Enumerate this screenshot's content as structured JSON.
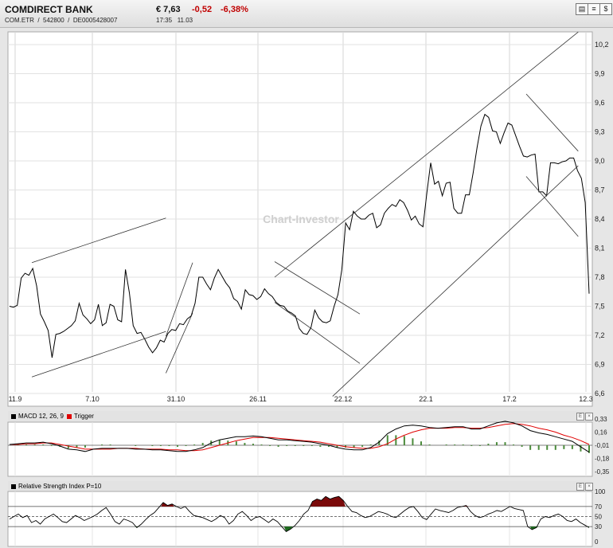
{
  "header": {
    "name": "COMDIRECT BANK",
    "exchange": "COM.ETR",
    "wkn": "542800",
    "isin": "DE0005428007",
    "price": "€ 7,63",
    "change": "-0,52",
    "change_pct": "-6,38%",
    "time": "17:35",
    "date": "11.03",
    "tool_buttons": [
      "chart-icon",
      "bars-icon",
      "dollar-icon"
    ]
  },
  "watermark": "Chart-Investor",
  "colors": {
    "price_line": "#000000",
    "trigger": "#e00000",
    "hist": "#4a8a3a",
    "rsi_over": "#7a0a0a",
    "rsi_under": "#1e6a1e",
    "negative": "#c00000"
  },
  "chart_data": [
    {
      "type": "line",
      "title": "",
      "xlabel": "",
      "ylabel": "",
      "x_ticks": [
        "11.9",
        "7.10",
        "31.10",
        "26.11",
        "22.12",
        "22.1",
        "17.2",
        "12.3"
      ],
      "y_ticks": [
        "10,2",
        "9,9",
        "9,6",
        "9,3",
        "9,0",
        "8,7",
        "8,4",
        "8,1",
        "7,8",
        "7,5",
        "7,2",
        "6,9",
        "6,6"
      ],
      "ylim": [
        6.6,
        10.2
      ],
      "axis_position": "right",
      "grid": true,
      "series": [
        {
          "values": [
            7.5,
            7.49,
            7.51,
            7.79,
            7.84,
            7.82,
            7.89,
            7.71,
            7.42,
            7.34,
            7.25,
            6.97,
            7.21,
            7.22,
            7.24,
            7.27,
            7.3,
            7.35,
            7.53,
            7.41,
            7.37,
            7.32,
            7.36,
            7.52,
            7.3,
            7.33,
            7.52,
            7.5,
            7.36,
            7.34,
            7.88,
            7.64,
            7.3,
            7.22,
            7.23,
            7.16,
            7.08,
            7.02,
            7.07,
            7.15,
            7.13,
            7.22,
            7.26,
            7.25,
            7.32,
            7.31,
            7.37,
            7.4,
            7.53,
            7.8,
            7.8,
            7.73,
            7.67,
            7.79,
            7.88,
            7.81,
            7.74,
            7.69,
            7.58,
            7.55,
            7.47,
            7.67,
            7.62,
            7.61,
            7.57,
            7.6,
            7.68,
            7.63,
            7.6,
            7.54,
            7.51,
            7.5,
            7.45,
            7.43,
            7.4,
            7.27,
            7.22,
            7.21,
            7.28,
            7.46,
            7.38,
            7.34,
            7.33,
            7.35,
            7.5,
            7.62,
            7.88,
            8.36,
            8.29,
            8.48,
            8.43,
            8.4,
            8.4,
            8.44,
            8.46,
            8.31,
            8.34,
            8.46,
            8.51,
            8.55,
            8.53,
            8.6,
            8.57,
            8.49,
            8.39,
            8.43,
            8.35,
            8.32,
            8.67,
            8.98,
            8.76,
            8.79,
            8.64,
            8.77,
            8.78,
            8.51,
            8.46,
            8.46,
            8.65,
            8.65,
            8.88,
            9.14,
            9.36,
            9.48,
            9.45,
            9.31,
            9.3,
            9.18,
            9.29,
            9.39,
            9.37,
            9.26,
            9.15,
            9.05,
            9.04,
            9.06,
            9.07,
            8.68,
            8.68,
            8.64,
            8.98,
            8.98,
            8.97,
            8.99,
            9.0,
            9.03,
            9.03,
            8.9,
            8.82,
            8.57,
            7.63
          ]
        }
      ],
      "trendlines": [
        {
          "from": [
            "11.9",
            7.95
          ],
          "to": [
            "7.10+",
            8.41
          ]
        },
        {
          "from": [
            "11.9",
            6.77
          ],
          "to": [
            "7.10+",
            7.24
          ]
        },
        {
          "from": [
            "31.10-",
            6.81
          ],
          "to": [
            "31.10",
            7.43
          ]
        },
        {
          "from": [
            "31.10-",
            7.19
          ],
          "to": [
            "31.10",
            7.95
          ]
        },
        {
          "from": [
            "26.11",
            7.96
          ],
          "to": [
            "22.12",
            7.42
          ]
        },
        {
          "from": [
            "26.11",
            7.54
          ],
          "to": [
            "22.12",
            6.91
          ]
        },
        {
          "from": [
            "26.11",
            7.8
          ],
          "to": [
            "17.2+",
            10.33
          ]
        },
        {
          "from": [
            "22.12-",
            6.57
          ],
          "to": [
            "17.2+",
            8.95
          ]
        },
        {
          "from": [
            "17.2",
            9.69
          ],
          "to": [
            "17.2+",
            9.1
          ]
        },
        {
          "from": [
            "17.2",
            8.84
          ],
          "to": [
            "17.2+",
            8.22
          ]
        }
      ]
    },
    {
      "type": "line",
      "title": "MACD 12, 26, 9",
      "series": [
        {
          "name": "MACD 12, 26, 9",
          "color": "#000000"
        },
        {
          "name": "Trigger",
          "color": "#e00000"
        }
      ],
      "y_ticks": [
        "0,33",
        "0,16",
        "-0,01",
        "-0,18",
        "-0,35"
      ],
      "ylim": [
        -0.35,
        0.33
      ],
      "x_ticks": [
        "11.9",
        "7.10",
        "31.10",
        "26.11",
        "22.12",
        "22.1",
        "17.2",
        "12.3"
      ],
      "macd": [
        0.0,
        0.01,
        0.02,
        0.02,
        0.03,
        0.01,
        -0.02,
        -0.06,
        -0.07,
        -0.09,
        -0.06,
        -0.05,
        -0.05,
        -0.05,
        -0.05,
        -0.06,
        -0.06,
        -0.07,
        -0.07,
        -0.08,
        -0.09,
        -0.09,
        -0.07,
        -0.04,
        0.02,
        0.06,
        0.08,
        0.1,
        0.1,
        0.11,
        0.1,
        0.08,
        0.06,
        0.06,
        0.05,
        0.04,
        0.03,
        0.01,
        -0.01,
        -0.04,
        -0.06,
        -0.07,
        -0.07,
        -0.04,
        0.03,
        0.14,
        0.2,
        0.24,
        0.25,
        0.24,
        0.22,
        0.21,
        0.22,
        0.23,
        0.23,
        0.2,
        0.2,
        0.24,
        0.28,
        0.3,
        0.28,
        0.24,
        0.18,
        0.15,
        0.13,
        0.1,
        0.07,
        0.04,
        -0.03,
        -0.1
      ],
      "trigger": [
        0.0,
        0.0,
        0.01,
        0.01,
        0.02,
        0.02,
        0.0,
        -0.02,
        -0.04,
        -0.06,
        -0.06,
        -0.06,
        -0.06,
        -0.05,
        -0.05,
        -0.05,
        -0.06,
        -0.06,
        -0.06,
        -0.07,
        -0.07,
        -0.08,
        -0.08,
        -0.07,
        -0.04,
        -0.01,
        0.02,
        0.05,
        0.07,
        0.09,
        0.09,
        0.09,
        0.08,
        0.07,
        0.06,
        0.05,
        0.04,
        0.03,
        0.01,
        -0.01,
        -0.03,
        -0.04,
        -0.05,
        -0.05,
        -0.03,
        0.01,
        0.07,
        0.12,
        0.16,
        0.19,
        0.21,
        0.21,
        0.21,
        0.22,
        0.22,
        0.21,
        0.21,
        0.22,
        0.24,
        0.26,
        0.27,
        0.26,
        0.24,
        0.21,
        0.19,
        0.16,
        0.12,
        0.09,
        0.05,
        0.0
      ]
    },
    {
      "type": "line",
      "title": "Relative Strength Index P=10",
      "y_ticks": [
        "100",
        "70",
        "50",
        "30",
        "0"
      ],
      "ylim": [
        0,
        100
      ],
      "levels": [
        70,
        50,
        30
      ],
      "x_ticks": [
        "11.9",
        "7.10",
        "31.10",
        "26.11",
        "22.12",
        "22.1",
        "17.2",
        "12.3"
      ],
      "values": [
        45,
        50,
        55,
        48,
        52,
        38,
        42,
        35,
        45,
        50,
        55,
        48,
        40,
        38,
        45,
        52,
        48,
        42,
        46,
        50,
        55,
        62,
        68,
        55,
        40,
        35,
        45,
        42,
        38,
        28,
        35,
        44,
        52,
        58,
        68,
        78,
        72,
        75,
        70,
        66,
        70,
        60,
        52,
        50,
        48,
        44,
        40,
        45,
        52,
        48,
        35,
        42,
        55,
        60,
        52,
        42,
        48,
        50,
        44,
        38,
        45,
        40,
        30,
        20,
        25,
        32,
        42,
        55,
        62,
        80,
        85,
        82,
        90,
        85,
        88,
        90,
        82,
        70,
        60,
        58,
        52,
        48,
        50,
        55,
        60,
        58,
        55,
        50,
        48,
        55,
        62,
        68,
        70,
        60,
        48,
        44,
        55,
        65,
        62,
        60,
        58,
        62,
        68,
        70,
        72,
        60,
        52,
        48,
        50,
        55,
        58,
        62,
        60,
        65,
        70,
        66,
        64,
        62,
        30,
        24,
        28,
        45,
        50,
        48,
        52,
        55,
        50,
        42,
        40,
        45,
        38,
        33,
        28
      ]
    }
  ]
}
